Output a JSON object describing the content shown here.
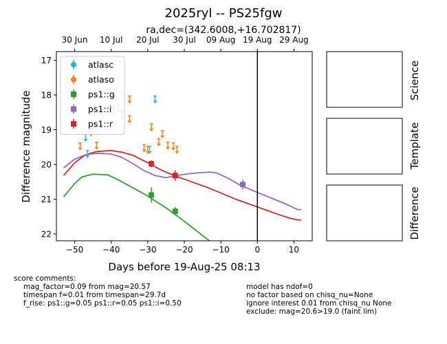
{
  "chart_data": {
    "type": "scatter",
    "title": "2025ryl -- PS25fgw",
    "subtitle": "ra,dec=(342.6008,+16.702817)",
    "xlabel": "Days before 19-Aug-25 08:13",
    "ylabel": "Difference magnitude",
    "xlim": [
      -55,
      15
    ],
    "ylim": [
      22.2,
      16.75
    ],
    "y_inverted": true,
    "xticks": [
      -50,
      -40,
      -30,
      -20,
      -10,
      0,
      10
    ],
    "xtick_labels": [
      "−50",
      "−40",
      "−30",
      "−20",
      "−10",
      "0",
      "10"
    ],
    "yticks": [
      17,
      18,
      19,
      20,
      21,
      22
    ],
    "top_axis_ticks": [
      {
        "x": -50,
        "label": "30 Jun"
      },
      {
        "x": -40,
        "label": "10 Jul"
      },
      {
        "x": -30,
        "label": "20 Jul"
      },
      {
        "x": -20,
        "label": "30 Jul"
      },
      {
        "x": -10,
        "label": "09 Aug"
      },
      {
        "x": 0,
        "label": "19 Aug"
      },
      {
        "x": 10,
        "label": "29 Aug"
      }
    ],
    "vline_x": 0,
    "legend_position": "top-left",
    "legend": [
      {
        "name": "atlasc",
        "color": "#17becf",
        "marker": "circle"
      },
      {
        "name": "atlaso",
        "color": "#ff7f0e",
        "marker": "circle"
      },
      {
        "name": "ps1::g",
        "color": "#2ca02c",
        "marker": "square"
      },
      {
        "name": "ps1::i",
        "color": "#9467bd",
        "marker": "square"
      },
      {
        "name": "ps1::r",
        "color": "#d62728",
        "marker": "square"
      }
    ],
    "upper_limits": [
      {
        "series": "atlasc",
        "color": "#17becf",
        "points": [
          [
            -47,
            19.25
          ],
          [
            -46.5,
            19.72
          ],
          [
            -29.5,
            19.6
          ],
          [
            -28,
            18.15
          ]
        ]
      },
      {
        "series": "atlaso",
        "color": "#ff7f0e",
        "points": [
          [
            -48.5,
            19.5
          ],
          [
            -45.5,
            19.1
          ],
          [
            -44,
            19.48
          ],
          [
            -38,
            18.4
          ],
          [
            -37,
            18.6
          ],
          [
            -35,
            18.15
          ],
          [
            -35,
            18.72
          ],
          [
            -31,
            19.55
          ],
          [
            -30,
            19.6
          ],
          [
            -29,
            18.95
          ],
          [
            -27,
            19.38
          ],
          [
            -26,
            19.15
          ],
          [
            -24.5,
            19.48
          ],
          [
            -23,
            19.5
          ],
          [
            -22,
            19.6
          ]
        ]
      }
    ],
    "detections": [
      {
        "series": "ps1::g",
        "color": "#2ca02c",
        "points": [
          {
            "x": -29,
            "y": 20.88,
            "err": 0.22
          },
          {
            "x": -22.5,
            "y": 21.35,
            "err": 0.12
          }
        ]
      },
      {
        "series": "ps1::r",
        "color": "#d62728",
        "points": [
          {
            "x": -29,
            "y": 19.98,
            "err": 0.1
          },
          {
            "x": -22.5,
            "y": 20.32,
            "err": 0.15
          }
        ]
      },
      {
        "series": "ps1::i",
        "color": "#9467bd",
        "points": [
          {
            "x": -4,
            "y": 20.58,
            "err": 0.14
          }
        ]
      }
    ],
    "model_curves": [
      {
        "series": "ps1::g",
        "color": "#2ca02c",
        "points": [
          [
            -53,
            20.93
          ],
          [
            -50,
            20.55
          ],
          [
            -48,
            20.36
          ],
          [
            -45,
            20.28
          ],
          [
            -41,
            20.3
          ],
          [
            -38,
            20.45
          ],
          [
            -35,
            20.62
          ],
          [
            -31,
            20.85
          ],
          [
            -28,
            21.05
          ],
          [
            -25,
            21.25
          ],
          [
            -22,
            21.48
          ],
          [
            -18,
            21.8
          ],
          [
            -15,
            22.05
          ],
          [
            -12.5,
            22.25
          ]
        ]
      },
      {
        "series": "ps1::r",
        "color": "#d62728",
        "points": [
          [
            -53,
            20.32
          ],
          [
            -50,
            19.95
          ],
          [
            -47,
            19.72
          ],
          [
            -44,
            19.63
          ],
          [
            -40,
            19.6
          ],
          [
            -37,
            19.65
          ],
          [
            -34,
            19.74
          ],
          [
            -30,
            19.95
          ],
          [
            -26,
            20.18
          ],
          [
            -22,
            20.35
          ],
          [
            -18,
            20.5
          ],
          [
            -14,
            20.65
          ],
          [
            -10,
            20.82
          ],
          [
            -6,
            21.0
          ],
          [
            -2,
            21.15
          ],
          [
            2,
            21.3
          ],
          [
            6,
            21.45
          ],
          [
            9,
            21.55
          ],
          [
            11,
            21.6
          ],
          [
            12,
            21.6
          ]
        ]
      },
      {
        "series": "ps1::i",
        "color": "#9467bd",
        "points": [
          [
            -53,
            20.1
          ],
          [
            -50,
            19.85
          ],
          [
            -47,
            19.72
          ],
          [
            -44,
            19.68
          ],
          [
            -40,
            19.7
          ],
          [
            -37,
            19.8
          ],
          [
            -34,
            19.98
          ],
          [
            -31,
            20.18
          ],
          [
            -28,
            20.32
          ],
          [
            -25,
            20.38
          ],
          [
            -22,
            20.32
          ],
          [
            -19,
            20.27
          ],
          [
            -16,
            20.24
          ],
          [
            -13,
            20.22
          ],
          [
            -11,
            20.25
          ],
          [
            -8,
            20.4
          ],
          [
            -5,
            20.58
          ],
          [
            -2,
            20.72
          ],
          [
            1,
            20.85
          ],
          [
            5,
            21.02
          ],
          [
            8,
            21.15
          ],
          [
            10,
            21.25
          ],
          [
            11,
            21.3
          ],
          [
            12,
            21.3
          ]
        ]
      }
    ]
  },
  "side_panels": [
    "Science",
    "Template",
    "Difference"
  ],
  "comments": {
    "header": "score comments:",
    "left": [
      "mag_factor=0.09 from mag=20.57",
      "timespan f=0.01 from timespan=29.7d",
      "f_rise: ps1::g=0.05 ps1::r=0.05 ps1::i=0.50"
    ],
    "right": [
      "model has ndof=0",
      "no factor based on chisq_nu=None",
      "ignore interest 0.01 from chisq_nu None",
      "exclude: mag=20.6>19.0 (faint lim)"
    ]
  }
}
